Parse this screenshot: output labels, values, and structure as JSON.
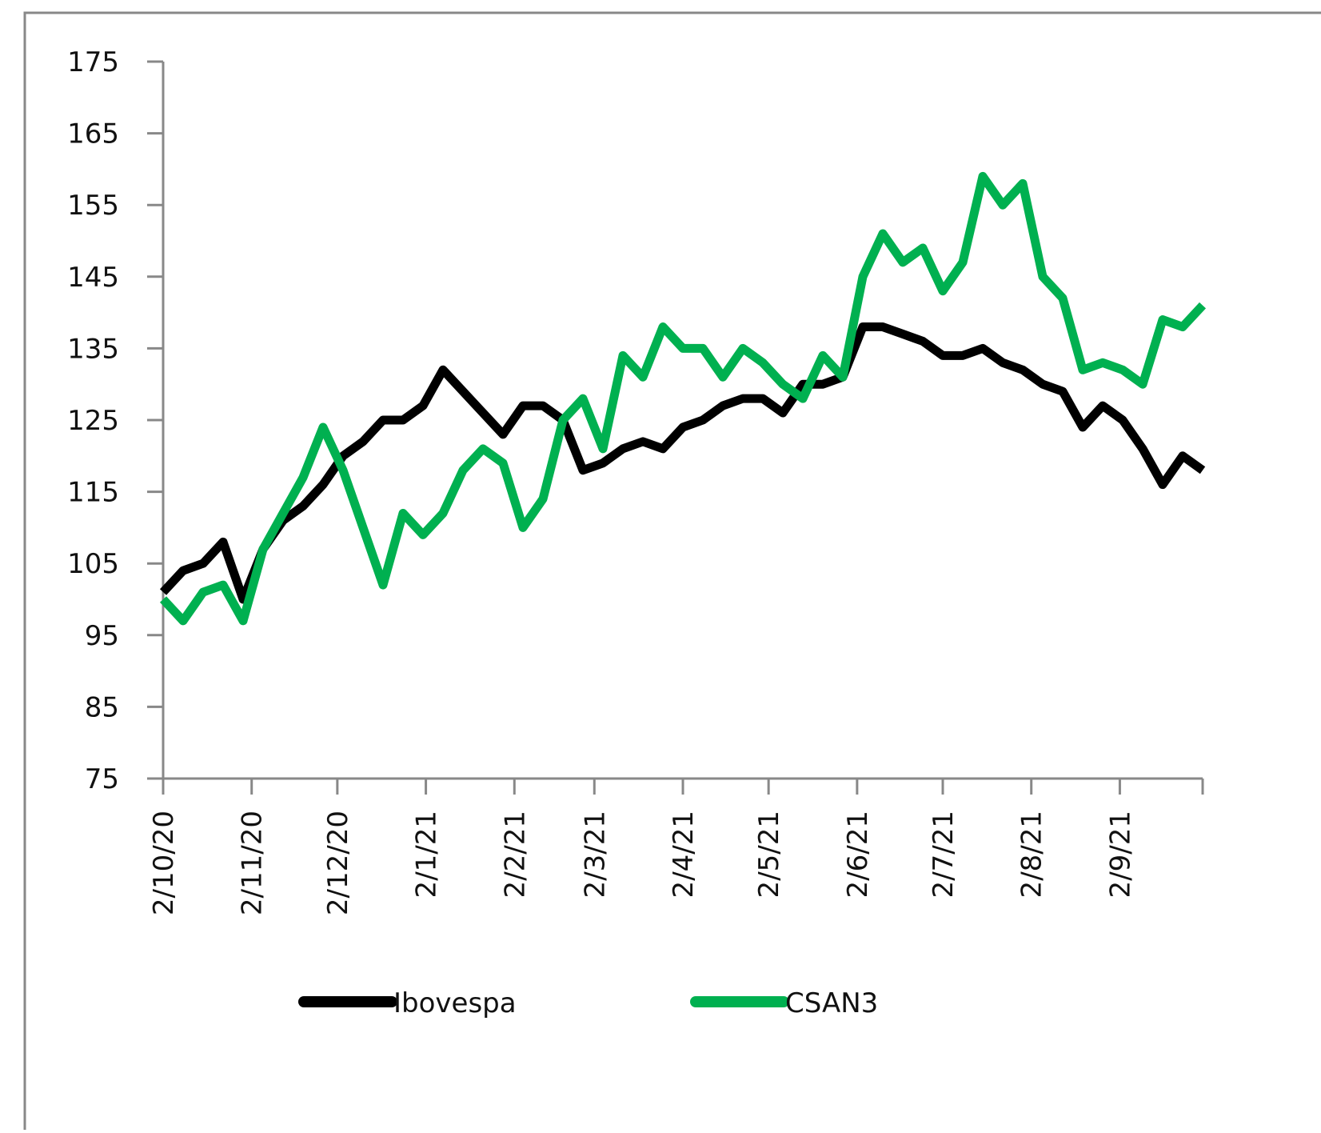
{
  "chart_data": {
    "type": "line",
    "x": [
      "2/10/20",
      "9/10/20",
      "16/10/20",
      "23/10/20",
      "30/10/20",
      "6/11/20",
      "13/11/20",
      "20/11/20",
      "27/11/20",
      "4/12/20",
      "11/12/20",
      "18/12/20",
      "25/12/20",
      "1/1/21",
      "8/1/21",
      "15/1/21",
      "22/1/21",
      "29/1/21",
      "5/2/21",
      "12/2/21",
      "19/2/21",
      "26/2/21",
      "5/3/21",
      "12/3/21",
      "19/3/21",
      "26/3/21",
      "2/4/21",
      "9/4/21",
      "16/4/21",
      "23/4/21",
      "30/4/21",
      "7/5/21",
      "14/5/21",
      "21/5/21",
      "28/5/21",
      "4/6/21",
      "11/6/21",
      "18/6/21",
      "25/6/21",
      "2/7/21",
      "9/7/21",
      "16/7/21",
      "23/7/21",
      "30/7/21",
      "6/8/21",
      "13/8/21",
      "20/8/21",
      "27/8/21",
      "3/9/21",
      "10/9/21",
      "17/9/21",
      "24/9/21",
      "1/10/21"
    ],
    "series": [
      {
        "name": "Ibovespa",
        "color": "#000000",
        "values": [
          101,
          104,
          105,
          108,
          100,
          107,
          111,
          113,
          116,
          120,
          122,
          125,
          125,
          127,
          132,
          129,
          126,
          123,
          127,
          127,
          125,
          118,
          119,
          121,
          122,
          121,
          124,
          125,
          127,
          128,
          128,
          126,
          130,
          130,
          131,
          138,
          138,
          137,
          136,
          134,
          134,
          135,
          133,
          132,
          130,
          129,
          124,
          127,
          125,
          121,
          116,
          120,
          118
        ]
      },
      {
        "name": "CSAN3",
        "color": "#00b050",
        "values": [
          100,
          97,
          101,
          102,
          97,
          107,
          112,
          117,
          124,
          118,
          110,
          102,
          112,
          109,
          112,
          118,
          121,
          119,
          110,
          114,
          125,
          128,
          121,
          134,
          131,
          138,
          135,
          135,
          131,
          135,
          133,
          130,
          128,
          134,
          131,
          145,
          151,
          147,
          149,
          143,
          147,
          159,
          155,
          158,
          145,
          142,
          132,
          133,
          132,
          130,
          139,
          138,
          141
        ]
      }
    ],
    "xlim": [
      "2/10/20",
      "1/10/21"
    ],
    "xticks": [
      "2/10/20",
      "2/11/20",
      "2/12/20",
      "2/1/21",
      "2/2/21",
      "2/3/21",
      "2/4/21",
      "2/5/21",
      "2/6/21",
      "2/7/21",
      "2/8/21",
      "2/9/21"
    ],
    "ylim": [
      75,
      175
    ],
    "yticks": [
      75,
      85,
      95,
      105,
      115,
      125,
      135,
      145,
      155,
      165,
      175
    ],
    "legend": "bottom"
  }
}
